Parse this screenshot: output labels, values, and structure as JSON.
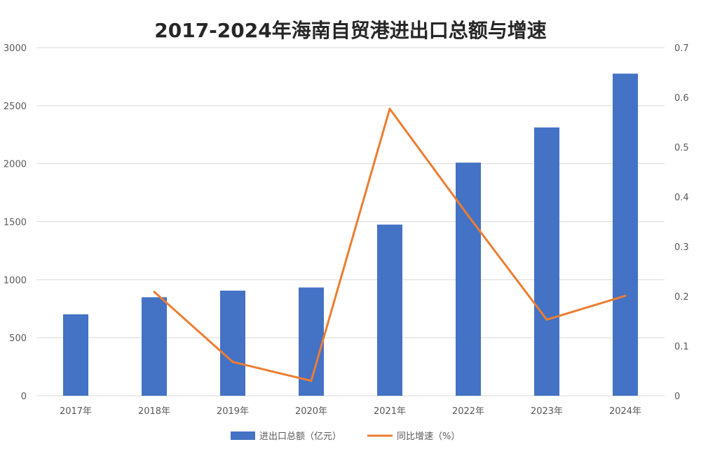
{
  "chart_data": {
    "type": "bar+line",
    "title": "2017-2024年海南自贸港进出口总额与增速",
    "categories": [
      "2017年",
      "2018年",
      "2019年",
      "2020年",
      "2021年",
      "2022年",
      "2023年",
      "2024年"
    ],
    "series": [
      {
        "name": "进出口总额（亿元）",
        "type": "bar",
        "axis": "left",
        "color": "#4472C4",
        "values": [
          702,
          849,
          906,
          933,
          1475,
          2009,
          2312,
          2776
        ]
      },
      {
        "name": "同比增速（%）",
        "type": "line",
        "axis": "right",
        "color": "#ED7D31",
        "values": [
          null,
          0.209,
          0.068,
          0.03,
          0.577,
          0.362,
          0.153,
          0.201
        ]
      }
    ],
    "y_left": {
      "min": 0,
      "max": 3000,
      "ticks": [
        "0",
        "500",
        "1000",
        "1500",
        "2000",
        "2500",
        "3000"
      ]
    },
    "y_right": {
      "min": 0,
      "max": 0.7,
      "ticks": [
        "0",
        "0.1",
        "0.2",
        "0.3",
        "0.4",
        "0.5",
        "0.6",
        "0.7"
      ]
    },
    "grid": true,
    "legend_position": "bottom"
  }
}
